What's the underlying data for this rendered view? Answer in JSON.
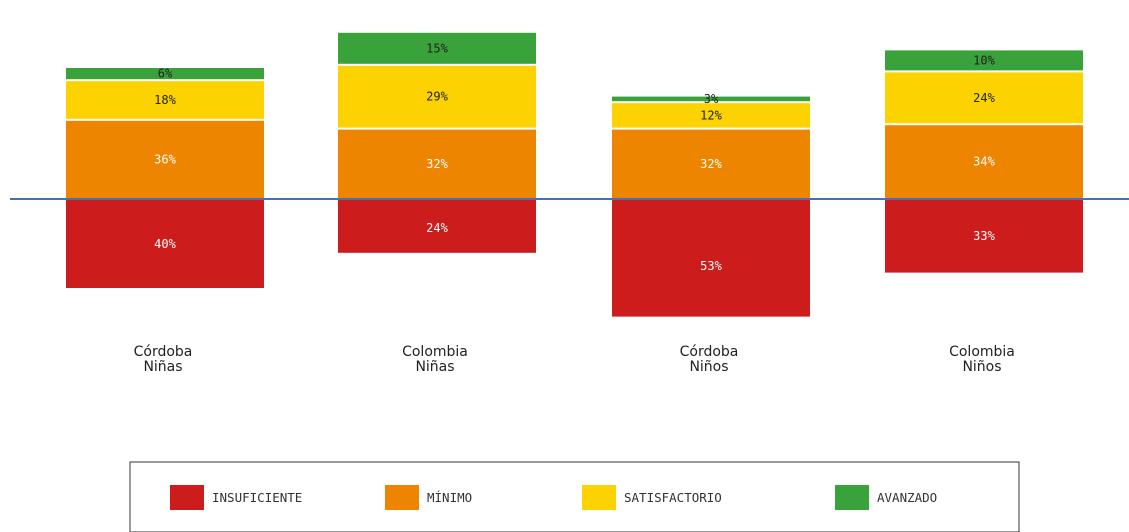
{
  "chart_data": {
    "type": "bar",
    "title": "",
    "xlabel": "",
    "ylabel": "",
    "ylim": [
      -53,
      63
    ],
    "grid": false,
    "legend_position": "bottom",
    "categories": [
      [
        "Córdoba",
        "Niñas"
      ],
      [
        "Colombia",
        "Niñas"
      ],
      [
        "Córdoba",
        "Niños"
      ],
      [
        "Colombia",
        "Niños"
      ]
    ],
    "series": [
      {
        "name": "INSUFICIENTE",
        "color": "#cc1c1c",
        "label_color": "#ffffff",
        "direction": "down",
        "values": [
          40,
          24,
          53,
          33
        ],
        "labels": [
          "40%",
          "24%",
          "53%",
          "33%"
        ]
      },
      {
        "name": "MÍNIMO",
        "color": "#ee8500",
        "label_color": "#ffffff",
        "direction": "up",
        "values": [
          36,
          32,
          32,
          34
        ],
        "labels": [
          "36%",
          "32%",
          "32%",
          "34%"
        ]
      },
      {
        "name": "SATISFACTORIO",
        "color": "#fcd200",
        "label_color": "#222222",
        "direction": "up",
        "values": [
          18,
          29,
          12,
          24
        ],
        "labels": [
          "18%",
          "29%",
          "12%",
          "24%"
        ]
      },
      {
        "name": "AVANZADO",
        "color": "#3aa23a",
        "label_color": "#222222",
        "direction": "up",
        "values": [
          6,
          15,
          3,
          10
        ],
        "labels": [
          "6%",
          "15%",
          "3%",
          "10%"
        ]
      }
    ],
    "baseline_color": "#4a6fb0"
  }
}
